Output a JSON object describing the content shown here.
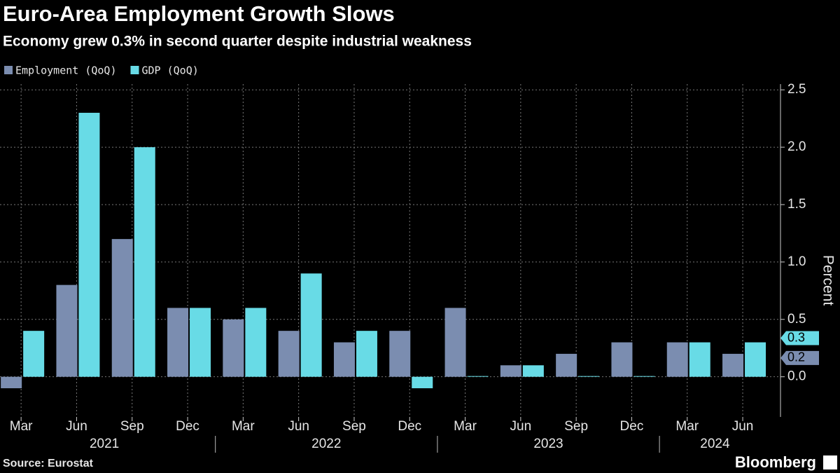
{
  "chart_data": {
    "type": "bar",
    "title": "Euro-Area Employment Growth Slows",
    "subtitle": "Economy grew 0.3% in second quarter despite industrial weakness",
    "y_label": "Percent",
    "source": "Source: Eurostat",
    "brand": "Bloomberg",
    "categories": [
      "Mar",
      "Jun",
      "Sep",
      "Dec",
      "Mar",
      "Jun",
      "Sep",
      "Dec",
      "Mar",
      "Jun",
      "Sep",
      "Dec",
      "Mar",
      "Jun"
    ],
    "category_years": [
      "2021",
      "2021",
      "2021",
      "2021",
      "2022",
      "2022",
      "2022",
      "2022",
      "2023",
      "2023",
      "2023",
      "2023",
      "2024",
      "2024"
    ],
    "series": [
      {
        "name": "Employment (QoQ)",
        "color": "#7b8db0",
        "values": [
          -0.1,
          0.8,
          1.2,
          0.6,
          0.5,
          0.4,
          0.3,
          0.4,
          0.6,
          0.1,
          0.2,
          0.3,
          0.3,
          0.2
        ]
      },
      {
        "name": "GDP (QoQ)",
        "color": "#68dbe6",
        "values": [
          0.4,
          2.3,
          2.0,
          0.6,
          0.6,
          0.9,
          0.4,
          -0.1,
          0.0,
          0.1,
          0.0,
          0.0,
          0.3,
          0.3
        ]
      }
    ],
    "ylim": [
      -0.35,
      2.55
    ],
    "yticks": [
      {
        "value": 0,
        "label": "0.0"
      },
      0.5,
      {
        "value": 1,
        "label": "1.0"
      },
      1.5,
      {
        "value": 2,
        "label": "2.0"
      },
      2.5
    ],
    "grid": true,
    "legend": "top-left"
  }
}
